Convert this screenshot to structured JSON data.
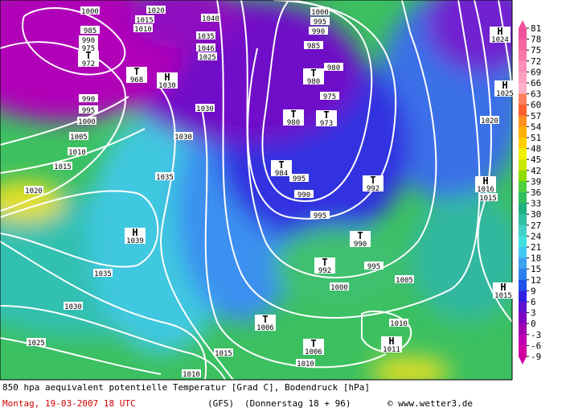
{
  "pressure_labels": [
    "1000",
    "995",
    "990",
    "985",
    "980",
    "975",
    "1030",
    "1030",
    "990",
    "995",
    "1000",
    "1005",
    "1010",
    "1015",
    "1020",
    "1035",
    "1035",
    "1030",
    "1025",
    "1015",
    "1010",
    "1010",
    "1010",
    "1005",
    "1000",
    "995",
    "990",
    "995",
    "995",
    "1020",
    "1015",
    "1020",
    "1015",
    "1010",
    "1040",
    "1046",
    "985",
    "990",
    "975",
    "1000",
    "1035",
    "1025"
  ],
  "centers": [
    {
      "symbol": "T",
      "value": "972"
    },
    {
      "symbol": "T",
      "value": "968"
    },
    {
      "symbol": "H",
      "value": "1030"
    },
    {
      "symbol": "H",
      "value": "1039"
    },
    {
      "symbol": "T",
      "value": "980"
    },
    {
      "symbol": "T",
      "value": "980"
    },
    {
      "symbol": "T",
      "value": "973"
    },
    {
      "symbol": "T",
      "value": "984"
    },
    {
      "symbol": "T",
      "value": "992"
    },
    {
      "symbol": "T",
      "value": "990"
    },
    {
      "symbol": "T",
      "value": "992"
    },
    {
      "symbol": "T",
      "value": "1006"
    },
    {
      "symbol": "T",
      "value": "1006"
    },
    {
      "symbol": "H",
      "value": "1011"
    },
    {
      "symbol": "H",
      "value": "1016"
    },
    {
      "symbol": "H",
      "value": "1024"
    },
    {
      "symbol": "H",
      "value": "1025"
    },
    {
      "symbol": "H",
      "value": "1015"
    }
  ],
  "colorbar": {
    "ticks": [
      81,
      78,
      75,
      72,
      69,
      66,
      63,
      60,
      57,
      54,
      51,
      48,
      45,
      42,
      39,
      36,
      33,
      30,
      27,
      24,
      21,
      18,
      15,
      12,
      9,
      6,
      3,
      0,
      -3,
      -6,
      -9
    ],
    "colors": [
      "#f0509c",
      "#f4649f",
      "#f878a8",
      "#f890b8",
      "#fca0c0",
      "#ffb0c8",
      "#ff8060",
      "#ff6030",
      "#ff9020",
      "#ffb000",
      "#ffd000",
      "#f0f000",
      "#c8e800",
      "#90dc00",
      "#50d040",
      "#30c060",
      "#20b080",
      "#30c0a0",
      "#40d0c8",
      "#40e0e0",
      "#40c8f0",
      "#40a0f0",
      "#3080f0",
      "#2050e8",
      "#3020e0",
      "#6010d0",
      "#8000c0",
      "#a000b0",
      "#c000b0",
      "#d000a0"
    ]
  },
  "footer": {
    "description": "850 hpa aequivalent potentielle Temperatur [Grad C], Bodendruck [hPa]",
    "date": "Montag, 19-03-2007  18 UTC",
    "model": "(GFS)",
    "forecast": "(Donnerstag 18 + 96)",
    "credit": "© www.wetter3.de"
  }
}
